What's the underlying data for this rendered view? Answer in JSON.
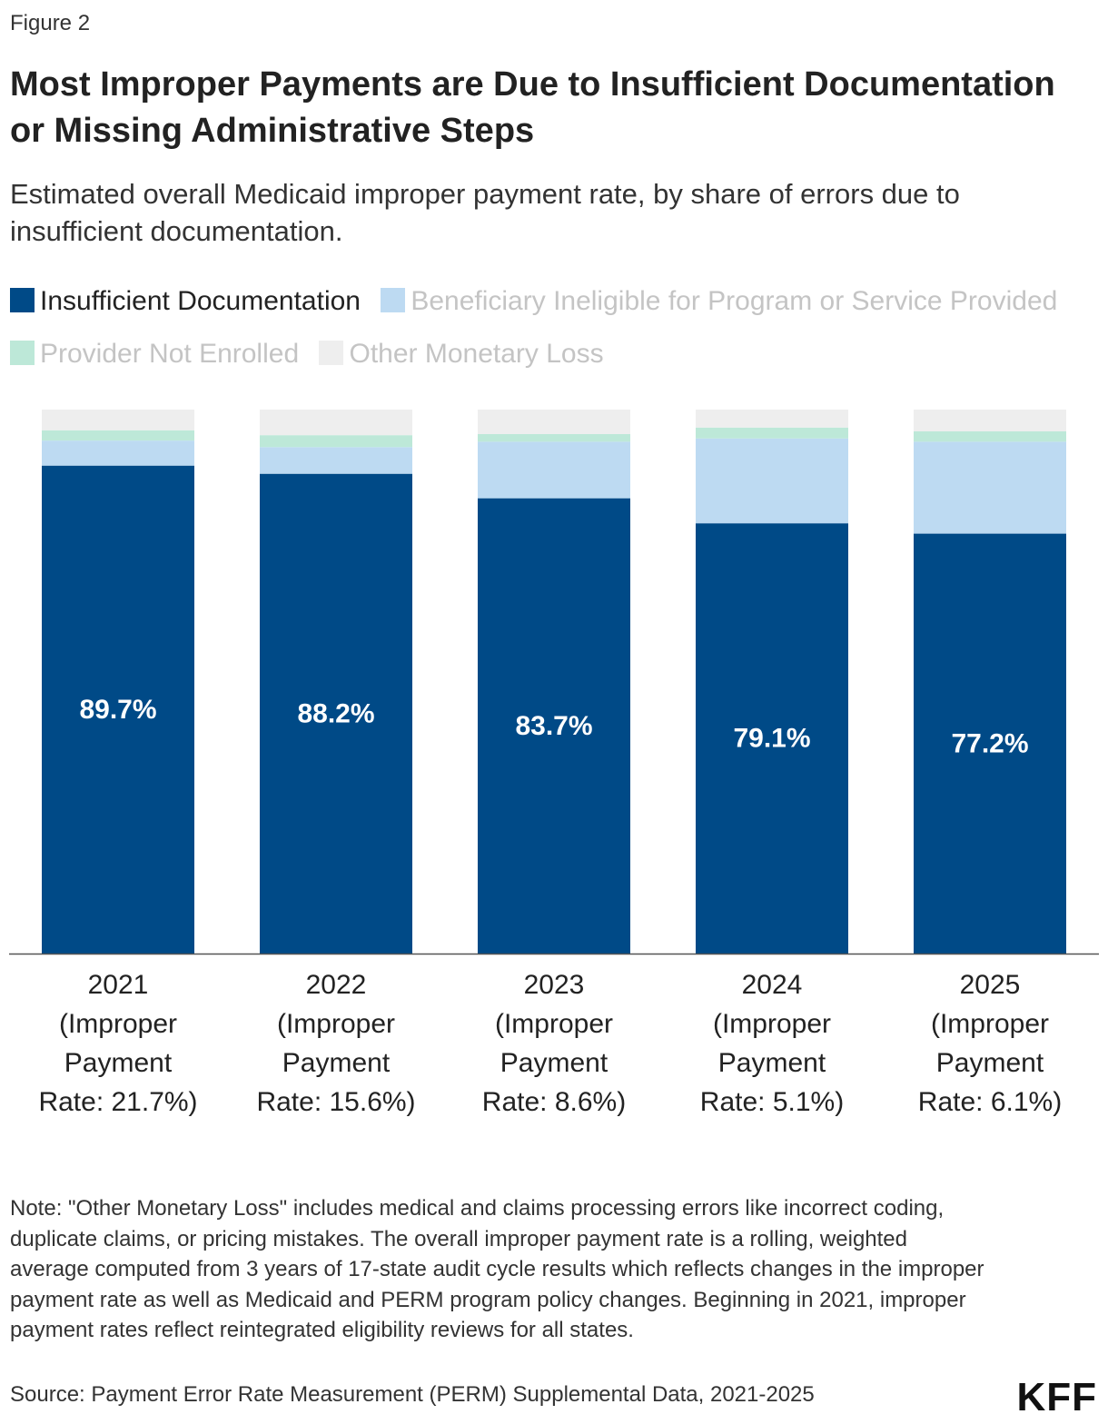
{
  "figure_label": "Figure 2",
  "logo_text": "KFF",
  "note": "Note: \"Other Monetary Loss\" includes medical and claims processing errors like incorrect coding, duplicate claims, or pricing mistakes. The overall improper payment rate is a rolling, weighted average computed from 3 years of 17-state audit cycle results which reflects changes in the improper payment rate as well as Medicaid and PERM program policy changes. Beginning in 2021, improper payment rates reflect reintegrated eligibility reviews for all states.",
  "source": "Source: Payment Error Rate Measurement (PERM) Supplemental Data, 2021-2025",
  "colors": {
    "insufficient": "#004a87",
    "beneficiary": "#bddaf2",
    "provider": "#bde8d8",
    "other": "#eeeeee",
    "bar_label": "#ffffff",
    "axis": "#555555"
  },
  "chart_data": {
    "type": "bar",
    "stacked": true,
    "normalized_to": 100,
    "title": "Most Improper Payments are Due to Insufficient Documentation or Missing Administrative Steps",
    "subtitle": "Estimated overall Medicaid improper payment rate, by share of errors due to insufficient documentation.",
    "legend_position": "top",
    "grid": false,
    "categories": [
      [
        "2021",
        "(Improper",
        "Payment",
        "Rate: 21.7%)"
      ],
      [
        "2022",
        "(Improper",
        "Payment",
        "Rate: 15.6%)"
      ],
      [
        "2023",
        "(Improper",
        "Payment",
        "Rate: 8.6%)"
      ],
      [
        "2024",
        "(Improper",
        "Payment",
        "Rate: 5.1%)"
      ],
      [
        "2025",
        "(Improper",
        "Payment",
        "Rate: 6.1%)"
      ]
    ],
    "series": [
      {
        "name": "Insufficient Documentation",
        "color_key": "insufficient",
        "legend_active": true,
        "values": [
          89.7,
          88.2,
          83.7,
          79.1,
          77.2
        ],
        "labels": [
          "89.7%",
          "88.2%",
          "83.7%",
          "79.1%",
          "77.2%"
        ]
      },
      {
        "name": "Beneficiary Ineligible for Program or Service Provided",
        "color_key": "beneficiary",
        "legend_active": false,
        "values": [
          4.6,
          4.9,
          10.4,
          15.6,
          16.9
        ]
      },
      {
        "name": "Provider Not Enrolled",
        "color_key": "provider",
        "legend_active": false,
        "values": [
          1.9,
          2.2,
          1.4,
          2.0,
          1.9
        ]
      },
      {
        "name": "Other Monetary Loss",
        "color_key": "other",
        "legend_active": false,
        "values": [
          3.8,
          4.7,
          4.5,
          3.3,
          4.0
        ]
      }
    ]
  }
}
